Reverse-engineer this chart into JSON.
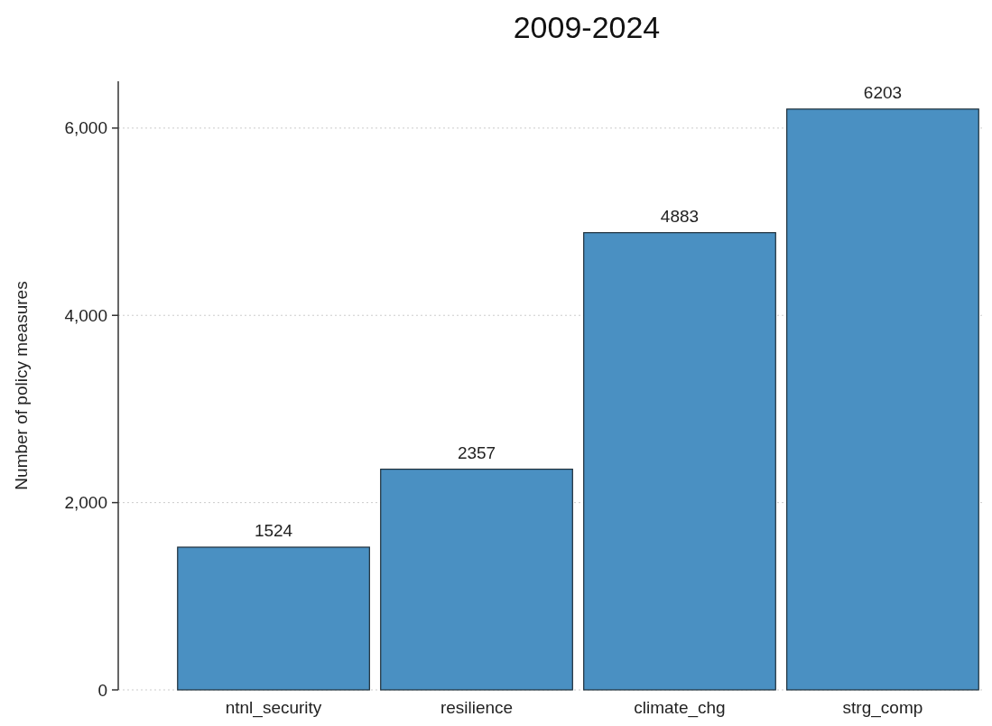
{
  "chart_data": {
    "type": "bar",
    "title": "2009-2024",
    "ylabel": "Number of policy measures",
    "categories": [
      "ntnl_security",
      "resilience",
      "climate_chg",
      "strg_comp"
    ],
    "values": [
      1524,
      2357,
      4883,
      6203
    ],
    "color": "#4a90c2",
    "ylim": [
      0,
      6500
    ],
    "yticks": [
      {
        "value": 0,
        "label": "0"
      },
      {
        "value": 2000,
        "label": "2,000"
      },
      {
        "value": 4000,
        "label": "4,000"
      },
      {
        "value": 6000,
        "label": "6,000"
      }
    ],
    "grid": "y",
    "data_labels": true
  }
}
